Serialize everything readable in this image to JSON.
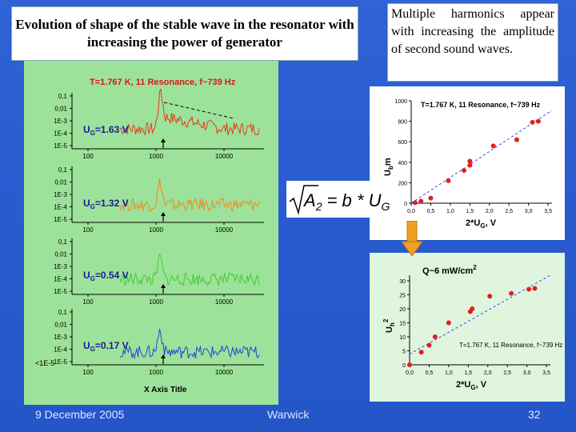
{
  "title": "Evolution of shape of the stable wave in the resonator with increasing the power of generator",
  "note": "Multiple harmonics appear with increasing the amplitude of second sound waves.",
  "left_panel": {
    "heading": "T=1.767 K, 11 Resonance, f~739 Hz",
    "y_ticks": [
      "0,1",
      "0,01",
      "1E-3",
      "1E-4",
      "1E-5"
    ],
    "x_ticks": [
      "100",
      "1000",
      "10000"
    ],
    "x_title": "X Axis Title",
    "y_tick_bottom": "<1E-5",
    "spectra": [
      {
        "label": "U",
        "sub": "G",
        "value": "=1.63 V",
        "color": "#e53b17"
      },
      {
        "label": "U",
        "sub": "G",
        "value": "=1.32 V",
        "color": "#f08a1c"
      },
      {
        "label": "U",
        "sub": "G",
        "value": "=0.54 V",
        "color": "#45c93a"
      },
      {
        "label": "U",
        "sub": "G",
        "value": "=0.17 V",
        "color": "#2a42d8"
      }
    ]
  },
  "formula": {
    "lhs": "A",
    "lhs_sub": "2",
    "rhs": " = b * U",
    "rhs_sub": "G"
  },
  "chart1": {
    "heading": "T=1.767 K, 11 Resonance, f~739 Hz",
    "xlabel": "2*U",
    "xlabel_sub": "G",
    "xlabel_unit": ", V",
    "ylabel": "U",
    "ylabel_sub": "b",
    "ylabel_unit": "m",
    "x_ticks": [
      "0,0",
      "0,5",
      "1,0",
      "1,5",
      "2,0",
      "2,5",
      "3,0",
      "3,5"
    ],
    "y_ticks": [
      "0",
      "200",
      "400",
      "600",
      "800",
      "1000"
    ]
  },
  "chart2": {
    "heading": "Q~6 mW/cm",
    "heading_sup": "2",
    "annotation": "T=1.767 K, 11 Resonance, f~739 Hz",
    "xlabel": "2*U",
    "xlabel_sub": "G",
    "xlabel_unit": ", V",
    "ylabel": "U",
    "ylabel_sub": "h",
    "ylabel_sup": "2",
    "x_ticks": [
      "0,0",
      "0,5",
      "1,0",
      "1,5",
      "2,0",
      "2,5",
      "3,0",
      "3,5"
    ],
    "y_ticks": [
      "0",
      "5",
      "10",
      "15",
      "20",
      "25",
      "30"
    ]
  },
  "chart_data": [
    {
      "type": "scatter",
      "title": "T=1.767 K, 11 Resonance, f~739 Hz",
      "xlabel": "2*UG, V",
      "ylabel": "Ubm",
      "xlim": [
        0,
        3.6
      ],
      "ylim": [
        0,
        1000
      ],
      "x": [
        0.1,
        0.25,
        0.5,
        0.95,
        1.35,
        1.5,
        1.5,
        2.1,
        2.7,
        3.1,
        3.25
      ],
      "y": [
        5,
        20,
        50,
        220,
        320,
        370,
        410,
        560,
        620,
        790,
        800
      ],
      "fit": "dashed-line"
    },
    {
      "type": "scatter",
      "title": "Q~6 mW/cm2",
      "xlabel": "2*UG, V",
      "ylabel": "Uh2",
      "xlim": [
        0,
        3.6
      ],
      "ylim": [
        0,
        32
      ],
      "x": [
        0.0,
        0.3,
        0.5,
        0.65,
        1.0,
        1.55,
        1.6,
        2.05,
        2.6,
        3.05,
        3.2
      ],
      "y": [
        0,
        4.5,
        7,
        10,
        15,
        19,
        20,
        24.5,
        25.5,
        27,
        27.3
      ],
      "fit": "dashed-line"
    }
  ],
  "footer": {
    "date": "9 December 2005",
    "center": "Warwick",
    "page": "32"
  },
  "colors": {
    "background": "#2a5bd0",
    "left_panel": "#9de29a",
    "dot": "#e02020",
    "fit": "#3c3cff"
  }
}
